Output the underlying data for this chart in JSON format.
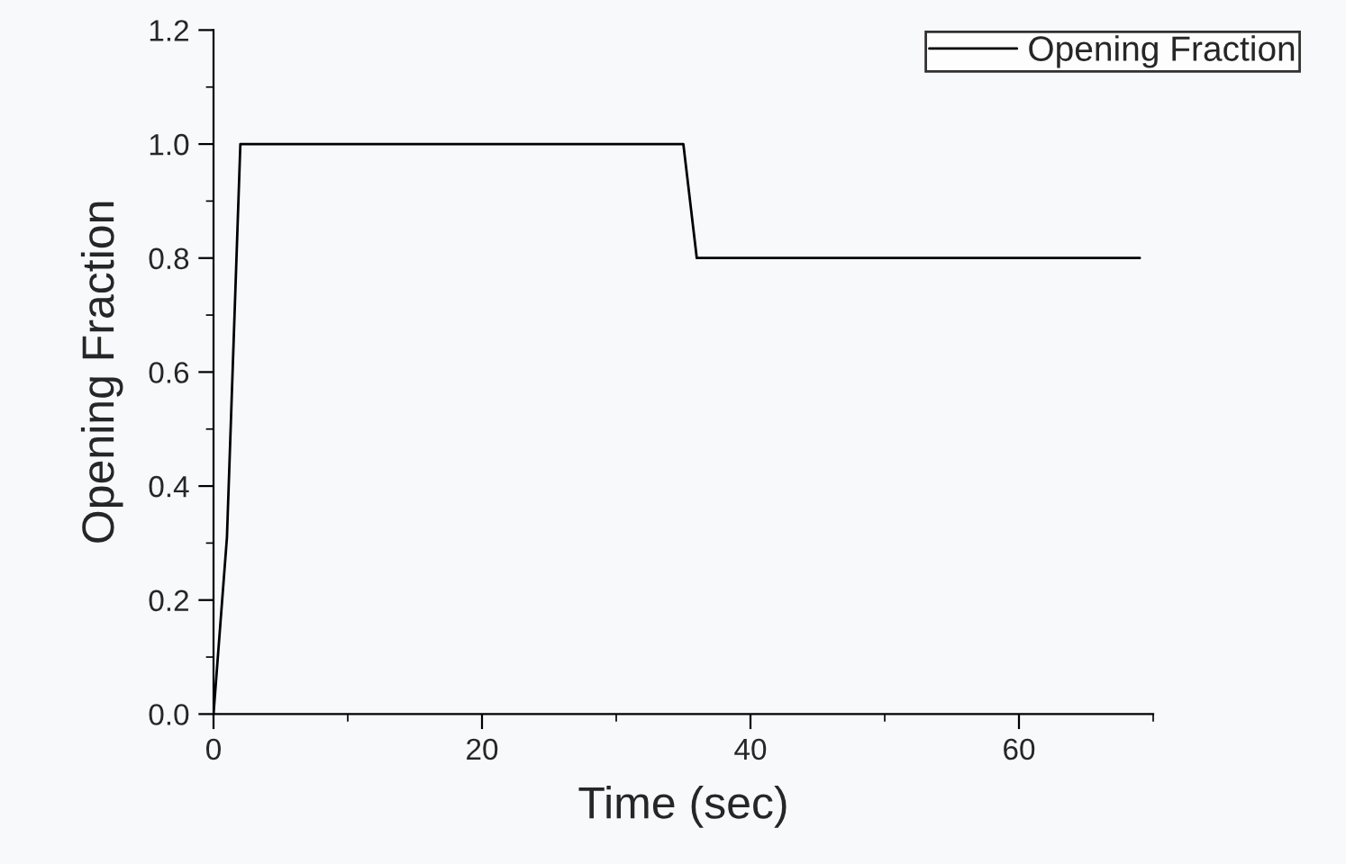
{
  "chart_data": {
    "type": "line",
    "xlabel": "Time (sec)",
    "ylabel": "Opening Fraction",
    "x": [
      0,
      1,
      2,
      35,
      36,
      69
    ],
    "series": [
      {
        "name": "Opening Fraction",
        "color": "#000000",
        "values": [
          0,
          0.31,
          1.0,
          1.0,
          0.8,
          0.8
        ]
      }
    ],
    "xlim": [
      0,
      70
    ],
    "xticks": [
      0,
      20,
      40,
      60
    ],
    "ylim": [
      0,
      1.2
    ],
    "yticks": [
      {
        "value": 0,
        "label": "0.0"
      },
      {
        "value": 0.2,
        "label": "0.2"
      },
      {
        "value": 0.4,
        "label": "0.4"
      },
      {
        "value": 0.6,
        "label": "0.6"
      },
      {
        "value": 0.8,
        "label": "0.8"
      },
      {
        "value": 1.0,
        "label": "1.0"
      },
      {
        "value": 1.2,
        "label": "1.2"
      }
    ],
    "grid": false,
    "legend": "top right",
    "marker": "none",
    "line_style": "solid"
  }
}
